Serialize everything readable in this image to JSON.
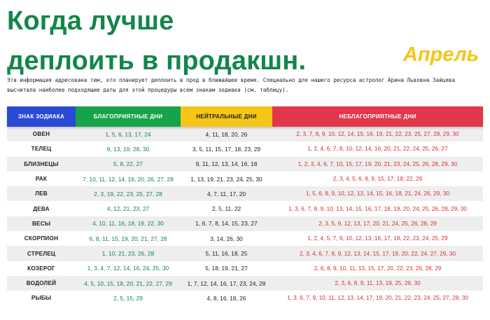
{
  "title_line1": "Когда лучше",
  "title_line2": "деплоить в продакшн.",
  "month": "Апрель",
  "description": "Эта информация адресована тем, кто планирует деплоить в прод в ближайшее время. Специально для нашего ресурса астролог Арина Львовна Зайцева высчитала наиболее подходящие даты для этой процедуры всем знакам зодиака (см. таблицу).",
  "colors": {
    "title": "#13864a",
    "month": "#f5c518",
    "header_sign": "#2a49d4",
    "header_good": "#16a34a",
    "header_neutral": "#f5c518",
    "header_bad": "#e0384a",
    "good_text": "#13864a",
    "bad_text": "#d42f3a"
  },
  "table": {
    "headers": {
      "sign": "ЗНАК ЗОДИАКА",
      "good": "БЛАГОПРИЯТНЫЕ ДНИ",
      "neutral": "НЕЙТРАЛЬНЫЕ ДНИ",
      "bad": "НЕБЛАГОПРИЯТНЫЕ ДНИ"
    },
    "rows": [
      {
        "sign": "ОВЕН",
        "good": "1, 5, 6, 13, 17, 24",
        "neutral": "4, 11, 18, 20, 26",
        "bad": "2, 3, 7, 8, 9, 10, 12, 14, 15, 16, 19, 21, 22, 23, 25, 27, 28, 29, 30"
      },
      {
        "sign": "ТЕЛЕЦ",
        "good": "9, 13, 19, 28, 30",
        "neutral": "3, 5, 11, 15, 17, 18, 23, 29",
        "bad": "1, 2, 4, 6, 7, 8, 10, 12, 14, 16, 20, 21, 22, 24, 25, 26, 27"
      },
      {
        "sign": "БЛИЗНЕЦЫ",
        "good": "5, 8, 22, 27",
        "neutral": "9, 11, 12, 13, 14, 16, 18",
        "bad": "1, 2, 3, 4, 6, 7, 10, 15, 17, 19, 20, 21, 23, 24, 25, 26, 28, 29, 30"
      },
      {
        "sign": "РАК",
        "good": "7, 10, 11, 12, 14, 16, 20, 26, 27, 28",
        "neutral": "1, 13, 19, 21, 23, 24, 25, 30",
        "bad": "2, 3, 4, 5, 6, 8, 9, 15, 17, 18, 22, 29"
      },
      {
        "sign": "ЛЕВ",
        "good": "2, 3, 19, 22, 23, 25, 27, 28",
        "neutral": "4, 7, 11, 17, 20",
        "bad": "1, 5, 6, 8, 9, 10, 12, 13, 14, 15, 16, 18, 21, 24, 26, 29, 30"
      },
      {
        "sign": "ДЕВА",
        "good": "4, 12, 21, 23, 27",
        "neutral": "2, 5, 11, 22",
        "bad": "1, 3, 6, 7, 8, 9, 10, 13, 14, 15, 16, 17, 18, 19, 20, 24, 25, 26, 28, 29, 30"
      },
      {
        "sign": "ВЕСЫ",
        "good": "4, 10, 11, 16, 18, 19, 22, 30",
        "neutral": "1, 6, 7, 8, 14, 15, 23, 27",
        "bad": "2, 3, 5, 9, 12, 13, 17, 20, 21, 24, 25, 26, 28, 29"
      },
      {
        "sign": "СКОРПИОН",
        "good": "6, 8, 11, 15, 19, 20, 21, 27, 28",
        "neutral": "3, 14, 26, 30",
        "bad": "1, 2, 4, 5, 7, 9, 10, 12, 13, 16, 17, 18, 22, 23, 24, 25, 29"
      },
      {
        "sign": "СТРЕЛЕЦ",
        "good": "1, 10, 21, 23, 26, 28",
        "neutral": "5, 11, 16, 18, 25",
        "bad": "2, 3, 4, 6, 7, 8, 9, 12, 13, 14, 15, 17, 19, 20, 22, 24, 27, 29, 30"
      },
      {
        "sign": "КОЗЕРОГ",
        "good": "1, 3, 4, 7, 12, 14, 16, 24, 25, 30",
        "neutral": "5, 18, 19, 21, 27",
        "bad": "2, 6, 8, 9, 10, 11, 13, 15, 17, 20, 22, 23, 26, 28, 29"
      },
      {
        "sign": "ВОДОЛЕЙ",
        "good": "4, 5, 10, 15, 18, 20, 21, 22, 27, 29",
        "neutral": "1, 7, 12, 14, 16, 17, 23, 24, 28",
        "bad": "2, 3, 6, 8, 9, 11, 13, 19, 25, 26, 30"
      },
      {
        "sign": "РЫБЫ",
        "good": "2, 5, 15, 29",
        "neutral": "4, 8, 16, 18, 26",
        "bad": "1, 3, 6, 7, 9, 10, 11, 12, 13, 14, 17, 19, 20, 21, 22, 23, 24, 25, 27, 28, 30"
      }
    ]
  }
}
